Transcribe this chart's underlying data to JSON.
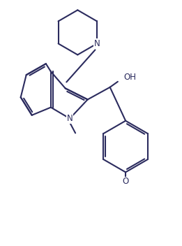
{
  "bg_color": "#ffffff",
  "line_color": "#2b2b5e",
  "line_width": 1.5,
  "figsize": [
    2.61,
    3.52
  ],
  "dpi": 100,
  "font_size": 8.5,
  "xlim": [
    0,
    8
  ],
  "ylim": [
    0,
    11
  ]
}
